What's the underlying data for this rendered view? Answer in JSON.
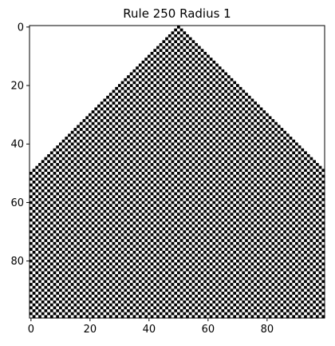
{
  "chart_data": {
    "type": "heatmap",
    "title": "Rule 250 Radius 1",
    "xlabel": "",
    "ylabel": "",
    "rule": 250,
    "radius": 1,
    "width": 100,
    "generations": 100,
    "initial_state": "single live cell at column 50",
    "xlim": [
      -0.5,
      99.5
    ],
    "ylim": [
      99.5,
      -0.5
    ],
    "x_ticks": [
      0,
      20,
      40,
      60,
      80
    ],
    "y_ticks": [
      0,
      20,
      40,
      60,
      80
    ],
    "colormap": {
      "0": "#ffffff",
      "1": "#000000"
    },
    "grid": false
  }
}
